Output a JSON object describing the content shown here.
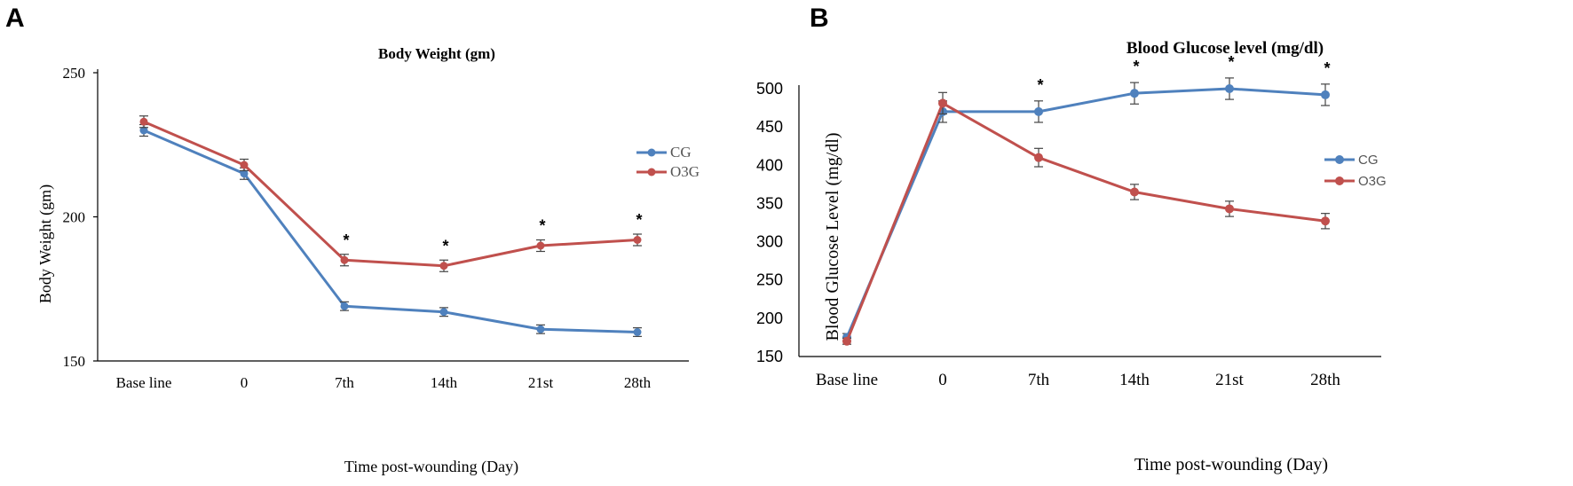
{
  "figure": {
    "panel_a_letter": "A",
    "panel_b_letter": "B"
  },
  "colors": {
    "CG": "#4f81bd",
    "O3G": "#c0504d",
    "error_bar": "#444444"
  },
  "chart_data": [
    {
      "type": "line",
      "title": "Body Weight (gm)",
      "xlabel": "Time post-wounding (Day)",
      "ylabel": "Body Weight (gm)",
      "categories": [
        "Base line",
        "0",
        "7th",
        "14th",
        "21st",
        "28th"
      ],
      "ylim": [
        150,
        250
      ],
      "yticks": [
        150,
        200,
        250
      ],
      "series": [
        {
          "name": "CG",
          "values": [
            230,
            215,
            169,
            167,
            161,
            160
          ],
          "errors": [
            2,
            2,
            1.5,
            1.5,
            1.5,
            1.5
          ]
        },
        {
          "name": "O3G",
          "values": [
            233,
            218,
            185,
            183,
            190,
            192
          ],
          "errors": [
            2,
            2,
            2,
            2,
            2,
            2
          ]
        }
      ],
      "significance": [
        "",
        "",
        "*",
        "*",
        "*",
        "*"
      ],
      "legend_position": "right"
    },
    {
      "type": "line",
      "title": "Blood Glucose level (mg/dl)",
      "xlabel": "Time post-wounding (Day)",
      "ylabel": "Blood Glucose Level (mg/dl)",
      "categories": [
        "Base line",
        "0",
        "7th",
        "14th",
        "21st",
        "28th"
      ],
      "ylim": [
        150,
        500
      ],
      "yticks": [
        150,
        200,
        250,
        300,
        350,
        400,
        450,
        500
      ],
      "series": [
        {
          "name": "CG",
          "values": [
            175,
            470,
            470,
            494,
            500,
            492
          ],
          "errors": [
            5,
            14,
            14,
            14,
            14,
            14
          ]
        },
        {
          "name": "O3G",
          "values": [
            170,
            481,
            410,
            365,
            343,
            327
          ],
          "errors": [
            4,
            14,
            12,
            10,
            10,
            10
          ]
        }
      ],
      "significance": [
        "",
        "",
        "*",
        "*",
        "*",
        "*"
      ],
      "legend_position": "right"
    }
  ]
}
